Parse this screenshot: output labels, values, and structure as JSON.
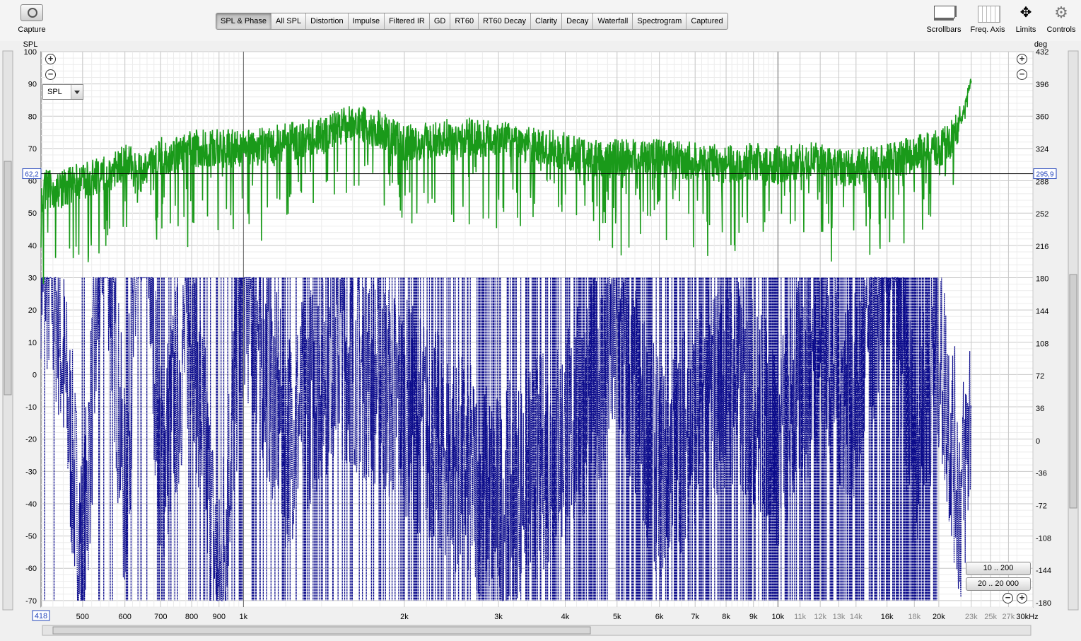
{
  "toolbar": {
    "capture_label": "Capture",
    "tabs": [
      "SPL & Phase",
      "All SPL",
      "Distortion",
      "Impulse",
      "Filtered IR",
      "GD",
      "RT60",
      "RT60 Decay",
      "Clarity",
      "Decay",
      "Waterfall",
      "Spectrogram",
      "Captured"
    ],
    "active_tab": 0,
    "right_tools": [
      "Scrollbars",
      "Freq. Axis",
      "Limits",
      "Controls"
    ]
  },
  "controls": {
    "trace_select": "SPL",
    "range_btn_1": "10 .. 200",
    "range_btn_2": "20 .. 20 000"
  },
  "chart_data": {
    "type": "line",
    "left_axis": {
      "label": "SPL",
      "ticks": [
        "100",
        "90",
        "80",
        "70",
        "60",
        "50",
        "40",
        "30",
        "20",
        "10",
        "0",
        "-10",
        "-20",
        "-30",
        "-40",
        "-50",
        "-60",
        "-70"
      ],
      "range": [
        -72,
        100
      ]
    },
    "right_axis": {
      "label": "deg",
      "ticks": [
        "432",
        "396",
        "360",
        "324",
        "288",
        "252",
        "216",
        "180",
        "144",
        "108",
        "72",
        "36",
        "0",
        "-36",
        "-72",
        "-108",
        "-144",
        "-180"
      ],
      "range": [
        -184.8,
        432
      ]
    },
    "x_axis": {
      "scale": "log",
      "unit": "Hz",
      "range": [
        418,
        30000
      ],
      "start_label": "418",
      "tick_labels": [
        {
          "f": 500,
          "t": "500"
        },
        {
          "f": 600,
          "t": "600"
        },
        {
          "f": 700,
          "t": "700"
        },
        {
          "f": 800,
          "t": "800"
        },
        {
          "f": 900,
          "t": "900"
        },
        {
          "f": 1000,
          "t": "1k"
        },
        {
          "f": 2000,
          "t": "2k"
        },
        {
          "f": 3000,
          "t": "3k"
        },
        {
          "f": 4000,
          "t": "4k"
        },
        {
          "f": 5000,
          "t": "5k"
        },
        {
          "f": 6000,
          "t": "6k"
        },
        {
          "f": 7000,
          "t": "7k"
        },
        {
          "f": 8000,
          "t": "8k"
        },
        {
          "f": 9000,
          "t": "9k"
        },
        {
          "f": 10000,
          "t": "10k"
        },
        {
          "f": 11000,
          "t": "11k"
        },
        {
          "f": 12000,
          "t": "12k"
        },
        {
          "f": 13000,
          "t": "13k"
        },
        {
          "f": 14000,
          "t": "14k"
        },
        {
          "f": 16000,
          "t": "16k"
        },
        {
          "f": 18000,
          "t": "18k"
        },
        {
          "f": 20000,
          "t": "20k"
        },
        {
          "f": 23000,
          "t": "23k"
        },
        {
          "f": 25000,
          "t": "25k"
        },
        {
          "f": 27000,
          "t": "27k"
        },
        {
          "f": 30000,
          "t": "30kHz"
        }
      ]
    },
    "cursor": {
      "left_value": "62,2",
      "right_value": "295,9",
      "spl": 62.2
    },
    "series": [
      {
        "kind": "SPL",
        "color": "#1a9a1a",
        "x": [
          418,
          450,
          500,
          550,
          600,
          650,
          700,
          750,
          800,
          900,
          1000,
          1200,
          1400,
          1600,
          1800,
          2000,
          2200,
          2500,
          3000,
          3500,
          4000,
          4500,
          5000,
          6000,
          7000,
          8000,
          9000,
          10000,
          11000,
          12000,
          13000,
          14000,
          15000,
          16000,
          17000,
          18000,
          19000,
          20000,
          21000,
          22000,
          23000
        ],
        "y": [
          58,
          57,
          60,
          62,
          66,
          62,
          68,
          68,
          70,
          70,
          70,
          72,
          74,
          78,
          76,
          72,
          72,
          74,
          73,
          71,
          69,
          67,
          67,
          67,
          66,
          65,
          66,
          65,
          66,
          66,
          64,
          64,
          65,
          66,
          67,
          68,
          69,
          70,
          72,
          78,
          92
        ]
      },
      {
        "kind": "Phase",
        "color": "#0c0c8c",
        "x": [
          418,
          450,
          500,
          550,
          600,
          650,
          700,
          800,
          900,
          1000,
          1200,
          1500,
          2000,
          3000,
          4000,
          5000,
          6000,
          8000,
          10000,
          12000,
          14000,
          16000,
          18000,
          20000,
          22000,
          23000
        ],
        "y": [
          40,
          20,
          -60,
          60,
          -40,
          70,
          -30,
          20,
          -70,
          30,
          -20,
          10,
          -10,
          -40,
          -20,
          10,
          -30,
          0,
          -20,
          10,
          -10,
          40,
          -20,
          10,
          -40,
          -10
        ]
      }
    ]
  }
}
